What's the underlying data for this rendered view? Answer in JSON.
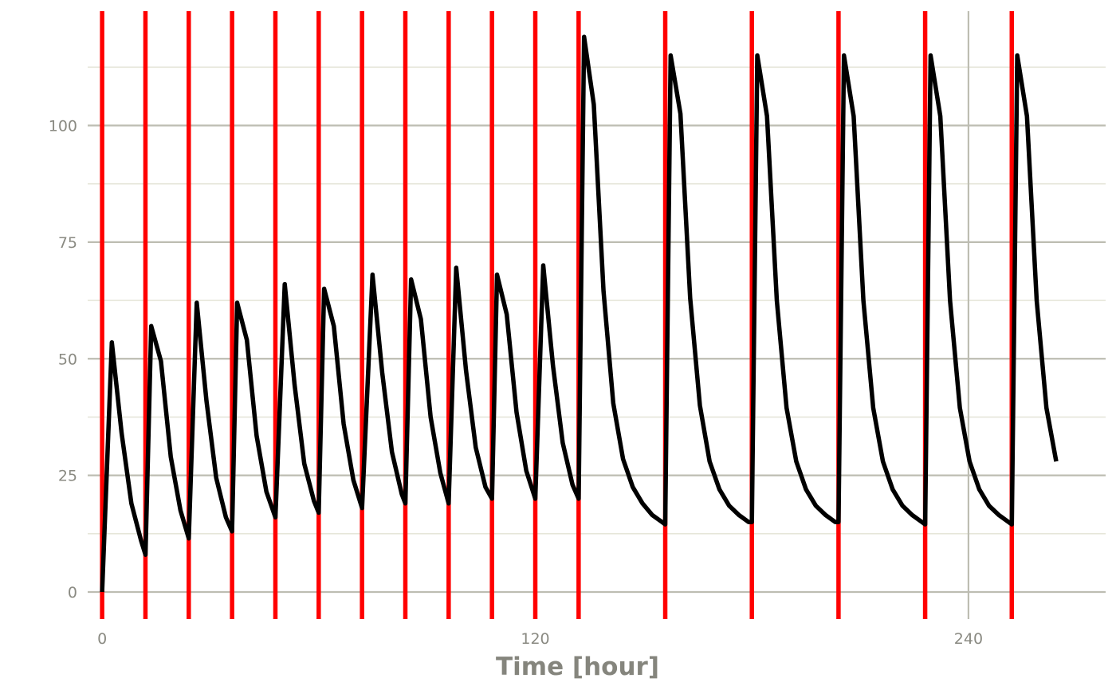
{
  "chart_data": {
    "type": "line",
    "title": "",
    "xlabel": "Time [hour]",
    "ylabel": "",
    "xlim": [
      -4,
      278
    ],
    "ylim": [
      -5.8,
      124.5
    ],
    "x_ticks": [
      0,
      120,
      240
    ],
    "x_tick_labels": [
      "0",
      "120",
      "240"
    ],
    "x_minor_ticks": [],
    "y_ticks": [
      0,
      25,
      50,
      75,
      100
    ],
    "y_tick_labels": [
      "0",
      "25",
      "50",
      "75",
      "100"
    ],
    "y_minor_ticks": [
      12.5,
      37.5,
      62.5,
      87.5,
      112.5
    ],
    "grid": true,
    "legend": "none",
    "colors": {
      "concentration": "#000000",
      "dose_events": "#ff0000",
      "grid_major": "#bdbdb2",
      "grid_minor": "#e6e6da"
    },
    "dose_times": [
      0,
      12,
      24,
      36,
      48,
      60,
      72,
      84,
      96,
      108,
      120,
      132,
      156,
      180,
      204,
      228,
      252
    ],
    "series": [
      {
        "x": [
          0,
          2.7,
          5.4,
          8.1,
          10.8,
          12,
          13.6,
          16.3,
          19,
          21.7,
          24,
          26.2,
          28.9,
          31.6,
          34.3,
          36,
          37.4,
          40.1,
          42.8,
          45.5,
          48,
          50.6,
          53.3,
          56,
          58.7,
          60,
          61.5,
          64.2,
          66.9,
          69.6,
          72,
          74.9,
          77.6,
          80.3,
          83,
          84,
          85.6,
          88.3,
          91,
          93.7,
          96,
          98.1,
          100.8,
          103.5,
          106.2,
          108,
          109.4,
          112.1,
          114.8,
          117.5,
          120,
          122.2,
          124.9,
          127.6,
          130.3,
          132,
          133.5,
          136.2,
          138.9,
          141.6,
          144.3,
          147,
          149.7,
          152.4,
          155.1,
          156,
          157.5,
          160.2,
          162.9,
          165.6,
          168.3,
          171,
          173.7,
          176.4,
          179.1,
          180,
          181.5,
          184.2,
          186.9,
          189.6,
          192.3,
          195,
          197.7,
          200.4,
          203.1,
          204,
          205.5,
          208.2,
          210.9,
          213.6,
          216.3,
          219,
          221.7,
          224.4,
          227.1,
          228,
          229.5,
          232.2,
          234.9,
          237.6,
          240.3,
          243,
          245.7,
          248.4,
          251.1,
          252,
          253.5,
          256.2,
          258.9,
          261.6,
          264.3
        ],
        "y": [
          0,
          53.5,
          34,
          19,
          11,
          8,
          57,
          49.5,
          29,
          17.5,
          11.5,
          62,
          41,
          24.5,
          16,
          13,
          62,
          54,
          33.5,
          21.5,
          16,
          66,
          44.5,
          27.5,
          19.5,
          17,
          65,
          57,
          36,
          24,
          18,
          68,
          47,
          30,
          21,
          19,
          67,
          58.5,
          37.5,
          25.5,
          19,
          69.5,
          47.5,
          31,
          22.5,
          20,
          68,
          59.5,
          38.5,
          26,
          20,
          70,
          48.5,
          32,
          23,
          20,
          119,
          104.5,
          64.5,
          40.5,
          28.5,
          22.5,
          19,
          16.5,
          15,
          14.5,
          115,
          102.5,
          63,
          40,
          28,
          22,
          18.5,
          16.5,
          15,
          15,
          115,
          102,
          62.5,
          39.5,
          28,
          22,
          18.5,
          16.5,
          15,
          15,
          115,
          102,
          62.5,
          39.5,
          28,
          22,
          18.5,
          16.5,
          15,
          14.5,
          115,
          102,
          62.5,
          39.5,
          28,
          22,
          18.5,
          16.5,
          15,
          14.5,
          115,
          102,
          62.5,
          39.5,
          28
        ]
      }
    ]
  }
}
